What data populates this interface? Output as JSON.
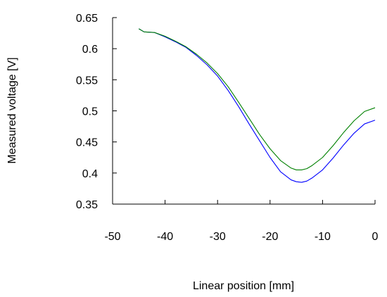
{
  "chart_data": {
    "type": "line",
    "title": "",
    "xlabel": "Linear position [mm]",
    "ylabel": "Measured voltage [V]",
    "xlim": [
      -50,
      0
    ],
    "ylim": [
      0.35,
      0.65
    ],
    "x_ticks": [
      -50,
      -40,
      -30,
      -20,
      -10,
      0
    ],
    "x_tick_labels": [
      "-50",
      "-40",
      "-30",
      "-20",
      "-10",
      "0"
    ],
    "y_ticks": [
      0.35,
      0.4,
      0.45,
      0.5,
      0.55,
      0.6,
      0.65
    ],
    "y_tick_labels": [
      "0.35",
      "0.4",
      "0.45",
      "0.5",
      "0.55",
      "0.6",
      "0.65"
    ],
    "grid": false,
    "legend": "none",
    "series": [
      {
        "color": "#0000ff",
        "x": [
          -45,
          -44,
          -42,
          -40,
          -38,
          -36,
          -34,
          -32,
          -30,
          -28,
          -26,
          -24,
          -22,
          -20,
          -18,
          -16,
          -15,
          -14,
          -13,
          -12,
          -10,
          -8,
          -6,
          -4,
          -2,
          0
        ],
        "y": [
          0.632,
          0.627,
          0.626,
          0.619,
          0.611,
          0.602,
          0.589,
          0.574,
          0.556,
          0.533,
          0.507,
          0.479,
          0.452,
          0.425,
          0.402,
          0.389,
          0.386,
          0.385,
          0.387,
          0.392,
          0.405,
          0.424,
          0.445,
          0.464,
          0.479,
          0.485
        ]
      },
      {
        "color": "#008000",
        "x": [
          -45,
          -44,
          -42,
          -40,
          -38,
          -36,
          -34,
          -32,
          -30,
          -28,
          -26,
          -24,
          -22,
          -20,
          -18,
          -16,
          -15,
          -14,
          -13,
          -12,
          -10,
          -8,
          -6,
          -4,
          -2,
          0
        ],
        "y": [
          0.632,
          0.627,
          0.626,
          0.62,
          0.612,
          0.603,
          0.591,
          0.577,
          0.56,
          0.539,
          0.514,
          0.488,
          0.462,
          0.439,
          0.42,
          0.408,
          0.405,
          0.405,
          0.407,
          0.412,
          0.425,
          0.444,
          0.465,
          0.484,
          0.499,
          0.505
        ]
      }
    ]
  }
}
